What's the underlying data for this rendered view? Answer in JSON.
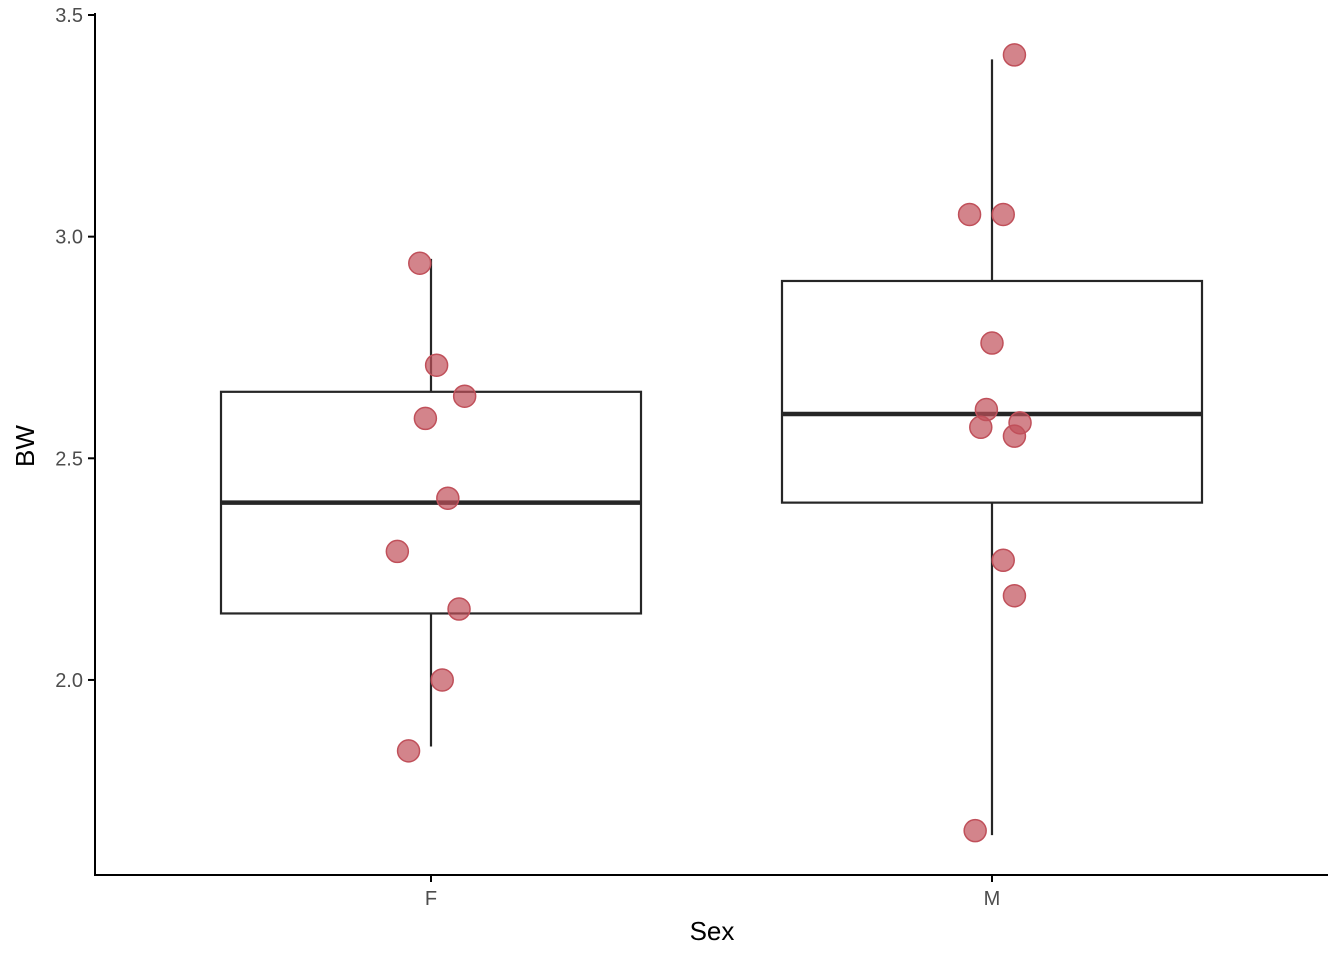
{
  "chart_data": {
    "type": "box",
    "xlabel": "Sex",
    "ylabel": "BW",
    "ylim": [
      1.56,
      3.5
    ],
    "yticks": [
      2.0,
      2.5,
      3.0,
      3.5
    ],
    "ytick_labels": [
      "2.0",
      "2.5",
      "3.0",
      "3.5"
    ],
    "categories": [
      "F",
      "M"
    ],
    "boxes": [
      {
        "category": "F",
        "q1": 2.15,
        "median": 2.4,
        "q3": 2.65,
        "whisker_low": 1.85,
        "whisker_high": 2.95
      },
      {
        "category": "M",
        "q1": 2.4,
        "median": 2.6,
        "q3": 2.9,
        "whisker_low": 1.65,
        "whisker_high": 3.4
      }
    ],
    "points": [
      {
        "category": "F",
        "jitter": -0.02,
        "value": 2.94
      },
      {
        "category": "F",
        "jitter": 0.01,
        "value": 2.71
      },
      {
        "category": "F",
        "jitter": 0.06,
        "value": 2.64
      },
      {
        "category": "F",
        "jitter": -0.01,
        "value": 2.59
      },
      {
        "category": "F",
        "jitter": 0.03,
        "value": 2.41
      },
      {
        "category": "F",
        "jitter": -0.06,
        "value": 2.29
      },
      {
        "category": "F",
        "jitter": 0.05,
        "value": 2.16
      },
      {
        "category": "F",
        "jitter": 0.02,
        "value": 2.0
      },
      {
        "category": "F",
        "jitter": -0.04,
        "value": 1.84
      },
      {
        "category": "M",
        "jitter": 0.04,
        "value": 3.41
      },
      {
        "category": "M",
        "jitter": -0.04,
        "value": 3.05
      },
      {
        "category": "M",
        "jitter": 0.02,
        "value": 3.05
      },
      {
        "category": "M",
        "jitter": 0.0,
        "value": 2.76
      },
      {
        "category": "M",
        "jitter": -0.01,
        "value": 2.61
      },
      {
        "category": "M",
        "jitter": 0.05,
        "value": 2.58
      },
      {
        "category": "M",
        "jitter": -0.02,
        "value": 2.57
      },
      {
        "category": "M",
        "jitter": 0.04,
        "value": 2.55
      },
      {
        "category": "M",
        "jitter": 0.02,
        "value": 2.27
      },
      {
        "category": "M",
        "jitter": 0.04,
        "value": 2.19
      },
      {
        "category": "M",
        "jitter": -0.03,
        "value": 1.66
      }
    ],
    "point_color": "#c0505a",
    "box_color": "#262626",
    "grid": false,
    "legend": "none"
  }
}
